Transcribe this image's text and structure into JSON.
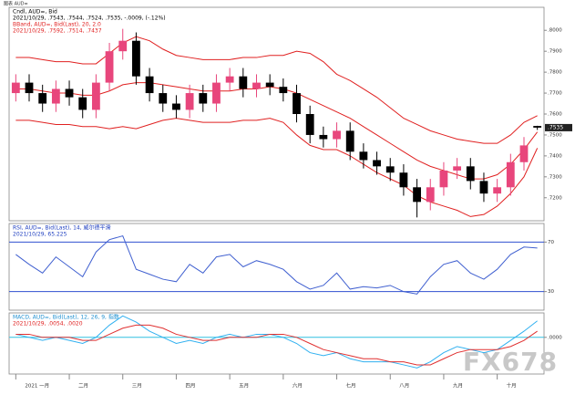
{
  "window_title": "图表 AUD=",
  "watermark": "FX678",
  "chart_data": [
    {
      "type": "candlestick",
      "header": [
        {
          "text": "Cndl, AUD=, Bid",
          "color": "#000000"
        },
        {
          "text": "2021/10/29, .7543, .7544, .7524, .7535, -.0009, (-.12%)",
          "color": "#000000"
        },
        {
          "text": "BBand, AUD=, Bid(Last), 20, 2.0",
          "color": "#e02020"
        },
        {
          "text": "2021/10/29, .7592, .7514, .7437",
          "color": "#e02020"
        }
      ],
      "categories": [
        "2021 一月",
        null,
        null,
        null,
        "二月",
        null,
        null,
        null,
        "三月",
        null,
        null,
        null,
        "四月",
        null,
        null,
        null,
        "五月",
        null,
        null,
        null,
        "六月",
        null,
        null,
        null,
        "七月",
        null,
        null,
        null,
        "八月",
        null,
        null,
        null,
        "九月",
        null,
        null,
        null,
        "十月",
        null,
        null,
        null
      ],
      "open": [
        0.77,
        0.775,
        0.77,
        0.765,
        0.772,
        0.768,
        0.762,
        0.775,
        0.79,
        0.795,
        0.778,
        0.77,
        0.765,
        0.762,
        0.77,
        0.765,
        0.775,
        0.778,
        0.772,
        0.775,
        0.773,
        0.77,
        0.76,
        0.75,
        0.748,
        0.752,
        0.742,
        0.738,
        0.735,
        0.732,
        0.725,
        0.718,
        0.725,
        0.733,
        0.735,
        0.728,
        0.722,
        0.725,
        0.737,
        0.7543
      ],
      "high": [
        0.779,
        0.779,
        0.774,
        0.776,
        0.776,
        0.772,
        0.779,
        0.794,
        0.8007,
        0.799,
        0.782,
        0.774,
        0.769,
        0.774,
        0.774,
        0.779,
        0.782,
        0.782,
        0.779,
        0.779,
        0.777,
        0.774,
        0.764,
        0.754,
        0.756,
        0.756,
        0.746,
        0.742,
        0.739,
        0.736,
        0.729,
        0.729,
        0.737,
        0.739,
        0.739,
        0.732,
        0.729,
        0.741,
        0.749,
        0.7544
      ],
      "low": [
        0.766,
        0.766,
        0.761,
        0.761,
        0.764,
        0.758,
        0.758,
        0.771,
        0.786,
        0.774,
        0.766,
        0.761,
        0.758,
        0.758,
        0.761,
        0.761,
        0.771,
        0.768,
        0.768,
        0.769,
        0.766,
        0.756,
        0.746,
        0.744,
        0.744,
        0.738,
        0.734,
        0.731,
        0.728,
        0.721,
        0.7106,
        0.714,
        0.721,
        0.729,
        0.724,
        0.718,
        0.718,
        0.721,
        0.733,
        0.7524
      ],
      "close": [
        0.775,
        0.77,
        0.765,
        0.772,
        0.768,
        0.762,
        0.775,
        0.79,
        0.795,
        0.778,
        0.77,
        0.765,
        0.762,
        0.77,
        0.765,
        0.775,
        0.778,
        0.772,
        0.775,
        0.773,
        0.77,
        0.76,
        0.75,
        0.748,
        0.752,
        0.742,
        0.738,
        0.735,
        0.732,
        0.725,
        0.718,
        0.725,
        0.733,
        0.735,
        0.728,
        0.722,
        0.725,
        0.737,
        0.745,
        0.7535
      ],
      "up_color": "#e8467c",
      "down_color": "#000000",
      "series": [
        {
          "color": "#e02020",
          "values": [
            0.787,
            0.787,
            0.786,
            0.785,
            0.785,
            0.784,
            0.784,
            0.789,
            0.794,
            0.797,
            0.795,
            0.791,
            0.788,
            0.787,
            0.786,
            0.786,
            0.786,
            0.787,
            0.787,
            0.788,
            0.788,
            0.79,
            0.789,
            0.785,
            0.779,
            0.776,
            0.772,
            0.768,
            0.763,
            0.758,
            0.755,
            0.752,
            0.75,
            0.748,
            0.747,
            0.746,
            0.746,
            0.75,
            0.756,
            0.7592
          ]
        },
        {
          "color": "#e02020",
          "values": [
            0.772,
            0.772,
            0.771,
            0.77,
            0.77,
            0.769,
            0.769,
            0.771,
            0.774,
            0.775,
            0.775,
            0.774,
            0.773,
            0.772,
            0.771,
            0.771,
            0.771,
            0.772,
            0.772,
            0.773,
            0.772,
            0.77,
            0.767,
            0.764,
            0.761,
            0.758,
            0.754,
            0.75,
            0.746,
            0.742,
            0.738,
            0.735,
            0.733,
            0.731,
            0.729,
            0.729,
            0.731,
            0.736,
            0.743,
            0.7514
          ]
        },
        {
          "color": "#e02020",
          "values": [
            0.757,
            0.757,
            0.756,
            0.755,
            0.755,
            0.754,
            0.754,
            0.753,
            0.754,
            0.753,
            0.755,
            0.757,
            0.758,
            0.757,
            0.756,
            0.756,
            0.756,
            0.757,
            0.757,
            0.758,
            0.756,
            0.75,
            0.745,
            0.743,
            0.743,
            0.74,
            0.736,
            0.732,
            0.729,
            0.726,
            0.721,
            0.718,
            0.716,
            0.714,
            0.711,
            0.712,
            0.716,
            0.722,
            0.73,
            0.7437
          ]
        }
      ],
      "last_label": ".7535",
      "ylim": [
        0.709,
        0.811
      ],
      "yticks": [
        {
          "value": 0.72,
          "label": ".7200"
        },
        {
          "value": 0.73,
          "label": ".7300"
        },
        {
          "value": 0.74,
          "label": ".7400"
        },
        {
          "value": 0.75,
          "label": ".7500"
        },
        {
          "value": 0.76,
          "label": ".7600"
        },
        {
          "value": 0.77,
          "label": ".7700"
        },
        {
          "value": 0.78,
          "label": ".7800"
        },
        {
          "value": 0.79,
          "label": ".7900"
        },
        {
          "value": 0.8,
          "label": ".8000"
        }
      ],
      "grid": false
    },
    {
      "type": "line",
      "header": [
        {
          "text": "RSI, AUD=, Bid(Last), 14, 威尔德平滑",
          "color": "#2040c0"
        },
        {
          "text": "2021/10/29, 65.225",
          "color": "#2040c0"
        }
      ],
      "series": [
        {
          "color": "#4060d0",
          "values": [
            60,
            52,
            45,
            58,
            50,
            42,
            62,
            72,
            75,
            48,
            44,
            40,
            38,
            52,
            45,
            58,
            60,
            50,
            55,
            52,
            48,
            38,
            32,
            35,
            45,
            32,
            34,
            33,
            35,
            30,
            28,
            42,
            52,
            55,
            45,
            40,
            48,
            60,
            66,
            65.225
          ]
        }
      ],
      "ylim": [
        15,
        85
      ],
      "yticks": [
        30,
        70
      ],
      "grid": true,
      "grid_color": "#3050d0"
    },
    {
      "type": "line",
      "header": [
        {
          "text": "MACD, AUD=, Bid(Last), 12, 26, 9, 指数",
          "color": "#2090d0"
        },
        {
          "text": "2021/10/29, .0054, .0020",
          "color": "#e02020"
        }
      ],
      "series": [
        {
          "color": "#30b0f0",
          "values": [
            0.001,
            0.0,
            -0.001,
            0.0,
            -0.001,
            -0.002,
            0.0,
            0.004,
            0.007,
            0.005,
            0.002,
            0.0,
            -0.002,
            -0.001,
            -0.002,
            0.0,
            0.001,
            0.0,
            0.001,
            0.001,
            0.0,
            -0.002,
            -0.005,
            -0.006,
            -0.005,
            -0.007,
            -0.008,
            -0.008,
            -0.008,
            -0.009,
            -0.01,
            -0.008,
            -0.005,
            -0.003,
            -0.004,
            -0.005,
            -0.004,
            -0.001,
            0.002,
            0.0054
          ]
        },
        {
          "color": "#e03030",
          "values": [
            0.001,
            0.001,
            0.0,
            0.0,
            0.0,
            -0.001,
            -0.001,
            0.001,
            0.003,
            0.004,
            0.004,
            0.003,
            0.001,
            0.0,
            -0.001,
            -0.001,
            0.0,
            0.0,
            0.0,
            0.001,
            0.001,
            0.0,
            -0.002,
            -0.004,
            -0.005,
            -0.006,
            -0.007,
            -0.007,
            -0.008,
            -0.008,
            -0.009,
            -0.009,
            -0.007,
            -0.005,
            -0.004,
            -0.004,
            -0.004,
            -0.003,
            -0.001,
            0.002
          ]
        }
      ],
      "ylim": [
        -0.012,
        0.008
      ],
      "yticks": [
        {
          "value": 0,
          "label": ".0000"
        }
      ],
      "grid": true,
      "grid_color": "#30c0e0"
    }
  ]
}
